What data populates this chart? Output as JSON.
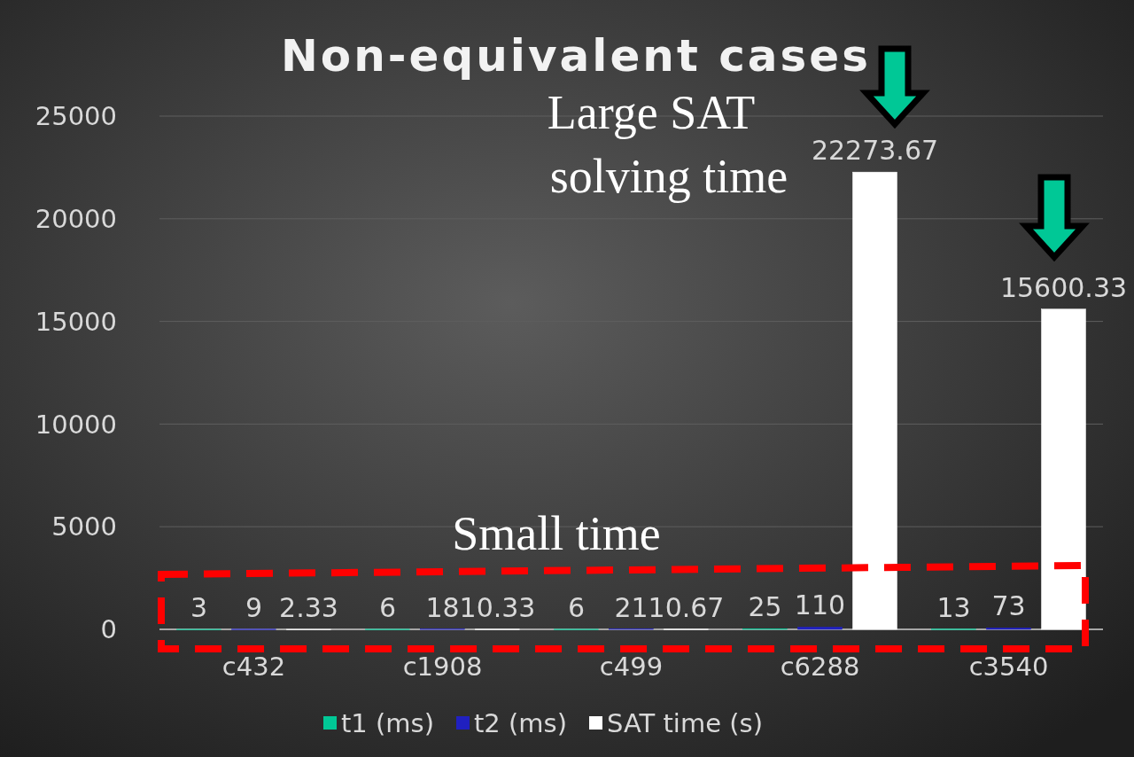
{
  "chart_data": {
    "type": "bar",
    "title": "Non-equivalent cases",
    "categories": [
      "c432",
      "c1908",
      "c499",
      "c6288",
      "c3540"
    ],
    "series": [
      {
        "name": "t1 (ms)",
        "color": "#00c896",
        "values": [
          3,
          6,
          6,
          25,
          13
        ]
      },
      {
        "name": "t2 (ms)",
        "color": "#2020c0",
        "values": [
          9,
          18,
          21,
          110,
          73
        ]
      },
      {
        "name": "SAT time (s)",
        "color": "#ffffff",
        "values": [
          2.33,
          10.33,
          10.67,
          22273.67,
          15600.33
        ]
      }
    ],
    "ylim": [
      0,
      25000
    ],
    "yticks": [
      0,
      5000,
      10000,
      15000,
      20000,
      25000
    ],
    "grid": "y",
    "legend": "bottom",
    "data_labels": true,
    "annotations": [
      "Large SAT solving time",
      "Small time"
    ]
  }
}
